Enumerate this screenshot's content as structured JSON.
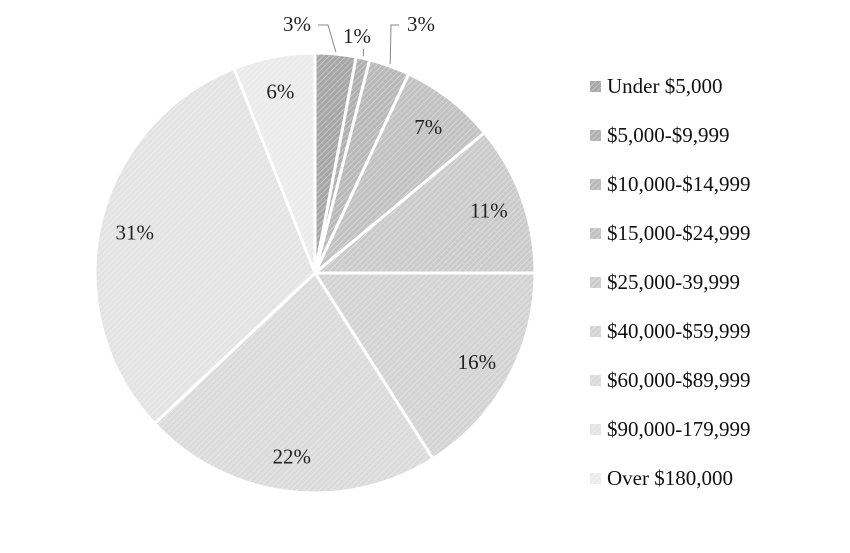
{
  "chart_data": {
    "type": "pie",
    "categories": [
      "Under $5,000",
      "$5,000-$9,999",
      "$10,000-$14,999",
      "$15,000-$24,999",
      "$25,000-39,999",
      "$40,000-$59,999",
      "$60,000-$89,999",
      "$90,000-179,999",
      "Over $180,000"
    ],
    "values": [
      3,
      1,
      3,
      7,
      11,
      16,
      22,
      31,
      6
    ],
    "labels": [
      "3%",
      "1%",
      "3%",
      "7%",
      "11%",
      "16%",
      "22%",
      "31%",
      "6%"
    ],
    "colors": [
      "#a7a7a7",
      "#b0b0b0",
      "#b9b9b9",
      "#c2c2c2",
      "#cbcbcb",
      "#d3d3d3",
      "#dbdbdb",
      "#e3e3e3",
      "#ebebeb"
    ],
    "legend_position": "right",
    "start_angle_deg": 0,
    "direction": "clockwise"
  }
}
